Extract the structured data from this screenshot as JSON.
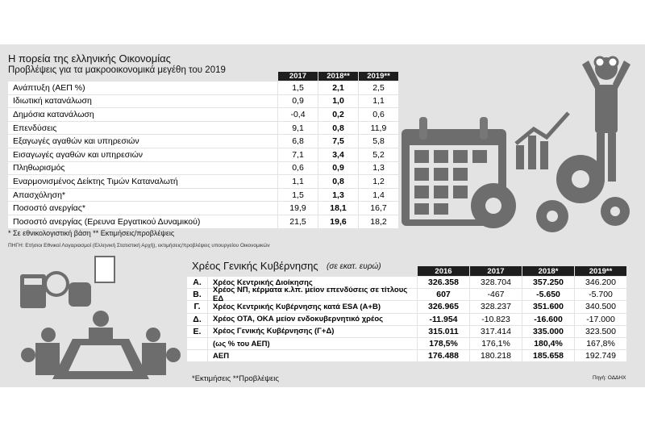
{
  "header": {
    "title": "Η πορεία της ελληνικής Οικονομίας",
    "subtitle": "Προβλέψεις για τα μακροοικονομικά μεγέθη του 2019"
  },
  "forecast_table": {
    "columns": [
      "2017",
      "2018**",
      "2019**"
    ],
    "rows": [
      {
        "label": "Ανάπτυξη (ΑΕΠ %)",
        "values": [
          "1,5",
          "2,1",
          "2,5"
        ]
      },
      {
        "label": "Ιδιωτική κατανάλωση",
        "values": [
          "0,9",
          "1,0",
          "1,1"
        ]
      },
      {
        "label": "Δημόσια κατανάλωση",
        "values": [
          "-0,4",
          "0,2",
          "0,6"
        ]
      },
      {
        "label": "Επενδύσεις",
        "values": [
          "9,1",
          "0,8",
          "11,9"
        ]
      },
      {
        "label": "Εξαγωγές αγαθών και υπηρεσιών",
        "values": [
          "6,8",
          "7,5",
          "5,8"
        ]
      },
      {
        "label": "Εισαγωγές αγαθών και υπηρεσιών",
        "values": [
          "7,1",
          "3,4",
          "5,2"
        ]
      },
      {
        "label": "Πληθωρισμός",
        "values": [
          "0,6",
          "0,9",
          "1,3"
        ]
      },
      {
        "label": "Εναρμονισμένος Δείκτης Τιμών Καταναλωτή",
        "values": [
          "1,1",
          "0,8",
          "1,2"
        ]
      },
      {
        "label": "Απασχόληση*",
        "values": [
          "1,5",
          "1,3",
          "1,4"
        ]
      },
      {
        "label": "Ποσοστό ανεργίας*",
        "values": [
          "19,9",
          "18,1",
          "16,7"
        ]
      },
      {
        "label": "Ποσοστό ανεργίας (Ερευνα Εργατικού Δυναμικού)",
        "values": [
          "21,5",
          "19,6",
          "18,2"
        ]
      }
    ],
    "footnote": "* Σε εθνικολογιστική βάση    ** Εκτιμήσεις/προβλέψεις",
    "source": "ΠΗΓΗ: Ετήσιοι Εθνικοί Λογαριασμοί (Ελληνική Στατιστική Αρχή), εκτιμήσεις/προβλέψεις υπουργείου Οικονομικών"
  },
  "debt_table": {
    "title": "Χρέος Γενικής Κυβέρνησης",
    "unit": "(σε εκατ. ευρώ)",
    "columns": [
      "2016",
      "2017",
      "2018*",
      "2019**"
    ],
    "rows": [
      {
        "letter": "Α.",
        "label": "Χρέος Κεντρικής Διοίκησης",
        "values": [
          "326.358",
          "328.704",
          "357.250",
          "346.200"
        ]
      },
      {
        "letter": "Β.",
        "label": "Χρέος ΝΠ, κέρματα κ.λπ. μείον επενδύσεις σε τίτλους ΕΔ",
        "values": [
          "607",
          "-467",
          "-5.650",
          "-5.700"
        ]
      },
      {
        "letter": "Γ.",
        "label": "Χρέος Κεντρικής Κυβέρνησης κατά ESA (Α+Β)",
        "values": [
          "326.965",
          "328.237",
          "351.600",
          "340.500"
        ]
      },
      {
        "letter": "Δ.",
        "label": "Χρέος ΟΤΑ, ΟΚΑ μείον ενδοκυβερνητικό χρέος",
        "values": [
          "-11.954",
          "-10.823",
          "-16.600",
          "-17.000"
        ]
      },
      {
        "letter": "Ε.",
        "label": "Χρέος Γενικής Κυβέρνησης (Γ+Δ)",
        "values": [
          "315.011",
          "317.414",
          "335.000",
          "323.500"
        ]
      },
      {
        "label": "(ως % του ΑΕΠ)",
        "values": [
          "178,5%",
          "176,1%",
          "180,4%",
          "167,8%"
        ]
      },
      {
        "label": "ΑΕΠ",
        "values": [
          "176.488",
          "180.218",
          "185.658",
          "192.749"
        ]
      }
    ],
    "footnote": "*Εκτιμήσεις **Προβλέψεις",
    "source": "Πηγή: ΟΔΔΗΧ"
  }
}
